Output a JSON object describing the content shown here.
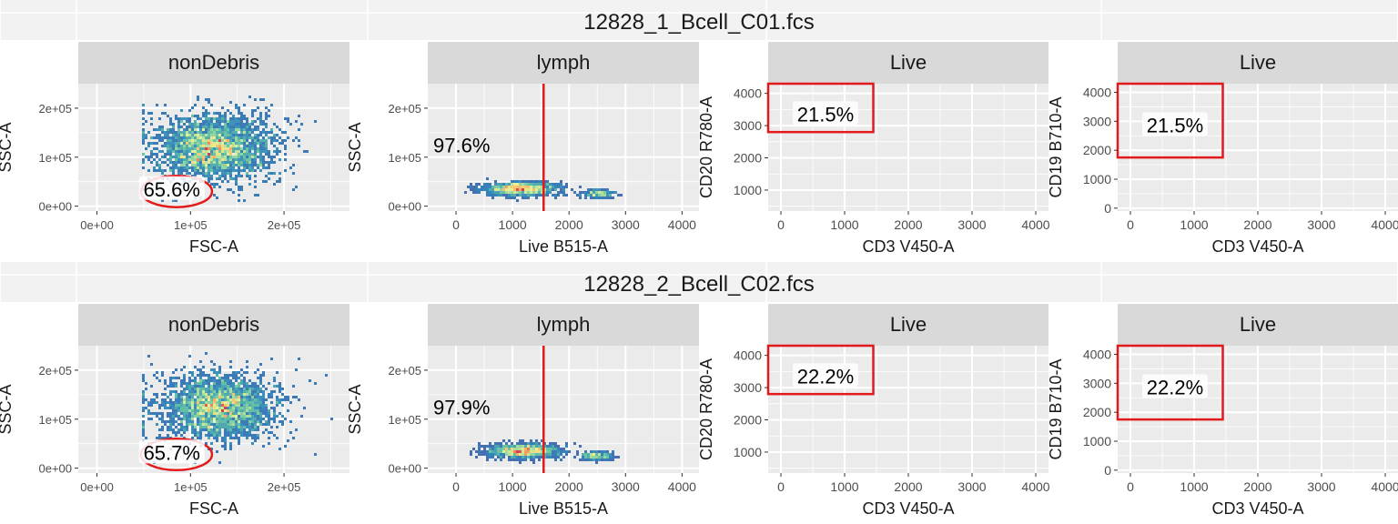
{
  "colors": {
    "panel_bg": "#ebebeb",
    "strip_bg": "#d9d9d9",
    "grid": "#ffffff",
    "gate": "#e31a1c",
    "density_low": "#5e4fa2",
    "density_mid": "#66c2a5",
    "density_high": "#ffffbf",
    "density_peak": "#d53e4f",
    "title_band": "#f2f2f2"
  },
  "chart_data": [
    {
      "sample": "12828_1_Bcell_C01.fcs",
      "panels": [
        {
          "type": "scatter",
          "strip": "nonDebris",
          "xlabel": "FSC-A",
          "ylabel": "SSC-A",
          "xlim": [
            -20000,
            270000
          ],
          "ylim": [
            -10000,
            250000
          ],
          "xticks": [
            0,
            100000,
            200000
          ],
          "xtick_labels": [
            "0e+00",
            "1e+05",
            "2e+05"
          ],
          "yticks": [
            0,
            100000,
            200000
          ],
          "ytick_labels": [
            "0e+00",
            "1e+05",
            "2e+05"
          ],
          "density": {
            "x_range": [
              50000,
              250000
            ],
            "y_range": [
              10000,
              240000
            ],
            "core": [
              125000,
              120000
            ]
          },
          "gate": {
            "shape": "ellipse",
            "center": [
              85000,
              30000
            ],
            "radii": [
              38000,
              32000
            ]
          },
          "gate_label": "65.6%",
          "gate_label_pos": [
            80000,
            35000
          ]
        },
        {
          "type": "scatter",
          "strip": "lymph",
          "xlabel": "Live B515-A",
          "ylabel": "SSC-A",
          "xlim": [
            -500,
            4300
          ],
          "ylim": [
            -10000,
            250000
          ],
          "xticks": [
            0,
            1000,
            2000,
            3000,
            4000
          ],
          "xtick_labels": [
            "0",
            "1000",
            "2000",
            "3000",
            "4000"
          ],
          "yticks": [
            0,
            100000,
            200000
          ],
          "ytick_labels": [
            "0e+00",
            "1e+05",
            "2e+05"
          ],
          "density": {
            "x_range": [
              -250,
              2950
            ],
            "y_range": [
              10000,
              70000
            ],
            "core": [
              1150,
              35000
            ]
          },
          "gate": {
            "shape": "vline",
            "x": 1550
          },
          "gate_label": "97.6%",
          "gate_label_pos": [
            100,
            125000
          ]
        },
        {
          "type": "scatter",
          "strip": "Live",
          "xlabel": "CD3 V450-A",
          "ylabel": "CD20 R780-A",
          "xlim": [
            -200,
            4200
          ],
          "ylim": [
            350,
            4300
          ],
          "xticks": [
            0,
            1000,
            2000,
            3000,
            4000
          ],
          "xtick_labels": [
            "0",
            "1000",
            "2000",
            "3000",
            "4000"
          ],
          "yticks": [
            1000,
            2000,
            3000,
            4000
          ],
          "ytick_labels": [
            "1000",
            "2000",
            "3000",
            "4000"
          ],
          "gate": {
            "shape": "rect",
            "x": [
              -200,
              1450
            ],
            "y": [
              2800,
              4300
            ]
          },
          "gate_label": "21.5%",
          "gate_label_pos": [
            700,
            3360
          ]
        },
        {
          "type": "scatter",
          "strip": "Live",
          "xlabel": "CD3 V450-A",
          "ylabel": "CD19 B710-A",
          "xlim": [
            -200,
            4200
          ],
          "ylim": [
            -100,
            4300
          ],
          "xticks": [
            0,
            1000,
            2000,
            3000,
            4000
          ],
          "xtick_labels": [
            "0",
            "1000",
            "2000",
            "3000",
            "4000"
          ],
          "yticks": [
            0,
            1000,
            2000,
            3000,
            4000
          ],
          "ytick_labels": [
            "0",
            "1000",
            "2000",
            "3000",
            "4000"
          ],
          "gate": {
            "shape": "rect",
            "x": [
              -200,
              1450
            ],
            "y": [
              1750,
              4300
            ]
          },
          "gate_label": "21.5%",
          "gate_label_pos": [
            700,
            2870
          ]
        }
      ]
    },
    {
      "sample": "12828_2_Bcell_C02.fcs",
      "panels": [
        {
          "type": "scatter",
          "strip": "nonDebris",
          "xlabel": "FSC-A",
          "ylabel": "SSC-A",
          "xlim": [
            -20000,
            270000
          ],
          "ylim": [
            -10000,
            250000
          ],
          "xticks": [
            0,
            100000,
            200000
          ],
          "xtick_labels": [
            "0e+00",
            "1e+05",
            "2e+05"
          ],
          "yticks": [
            0,
            100000,
            200000
          ],
          "ytick_labels": [
            "0e+00",
            "1e+05",
            "2e+05"
          ],
          "density": {
            "x_range": [
              50000,
              250000
            ],
            "y_range": [
              10000,
              240000
            ],
            "core": [
              130000,
              125000
            ]
          },
          "gate": {
            "shape": "ellipse",
            "center": [
              85000,
              28000
            ],
            "radii": [
              38000,
              32000
            ]
          },
          "gate_label": "65.7%",
          "gate_label_pos": [
            80000,
            32000
          ]
        },
        {
          "type": "scatter",
          "strip": "lymph",
          "xlabel": "Live B515-A",
          "ylabel": "SSC-A",
          "xlim": [
            -500,
            4300
          ],
          "ylim": [
            -10000,
            250000
          ],
          "xticks": [
            0,
            1000,
            2000,
            3000,
            4000
          ],
          "xtick_labels": [
            "0",
            "1000",
            "2000",
            "3000",
            "4000"
          ],
          "yticks": [
            0,
            100000,
            200000
          ],
          "ytick_labels": [
            "0e+00",
            "1e+05",
            "2e+05"
          ],
          "density": {
            "x_range": [
              -250,
              2950
            ],
            "y_range": [
              10000,
              70000
            ],
            "core": [
              1200,
              35000
            ]
          },
          "gate": {
            "shape": "vline",
            "x": 1550
          },
          "gate_label": "97.9%",
          "gate_label_pos": [
            100,
            125000
          ]
        },
        {
          "type": "scatter",
          "strip": "Live",
          "xlabel": "CD3 V450-A",
          "ylabel": "CD20 R780-A",
          "xlim": [
            -200,
            4200
          ],
          "ylim": [
            350,
            4300
          ],
          "xticks": [
            0,
            1000,
            2000,
            3000,
            4000
          ],
          "xtick_labels": [
            "0",
            "1000",
            "2000",
            "3000",
            "4000"
          ],
          "yticks": [
            1000,
            2000,
            3000,
            4000
          ],
          "ytick_labels": [
            "1000",
            "2000",
            "3000",
            "4000"
          ],
          "gate": {
            "shape": "rect",
            "x": [
              -200,
              1450
            ],
            "y": [
              2800,
              4300
            ]
          },
          "gate_label": "22.2%",
          "gate_label_pos": [
            700,
            3360
          ]
        },
        {
          "type": "scatter",
          "strip": "Live",
          "xlabel": "CD3 V450-A",
          "ylabel": "CD19 B710-A",
          "xlim": [
            -200,
            4200
          ],
          "ylim": [
            -100,
            4300
          ],
          "xticks": [
            0,
            1000,
            2000,
            3000,
            4000
          ],
          "xtick_labels": [
            "0",
            "1000",
            "2000",
            "3000",
            "4000"
          ],
          "yticks": [
            0,
            1000,
            2000,
            3000,
            4000
          ],
          "ytick_labels": [
            "0",
            "1000",
            "2000",
            "3000",
            "4000"
          ],
          "gate": {
            "shape": "rect",
            "x": [
              -200,
              1450
            ],
            "y": [
              1750,
              4300
            ]
          },
          "gate_label": "22.2%",
          "gate_label_pos": [
            700,
            2870
          ]
        }
      ]
    }
  ]
}
